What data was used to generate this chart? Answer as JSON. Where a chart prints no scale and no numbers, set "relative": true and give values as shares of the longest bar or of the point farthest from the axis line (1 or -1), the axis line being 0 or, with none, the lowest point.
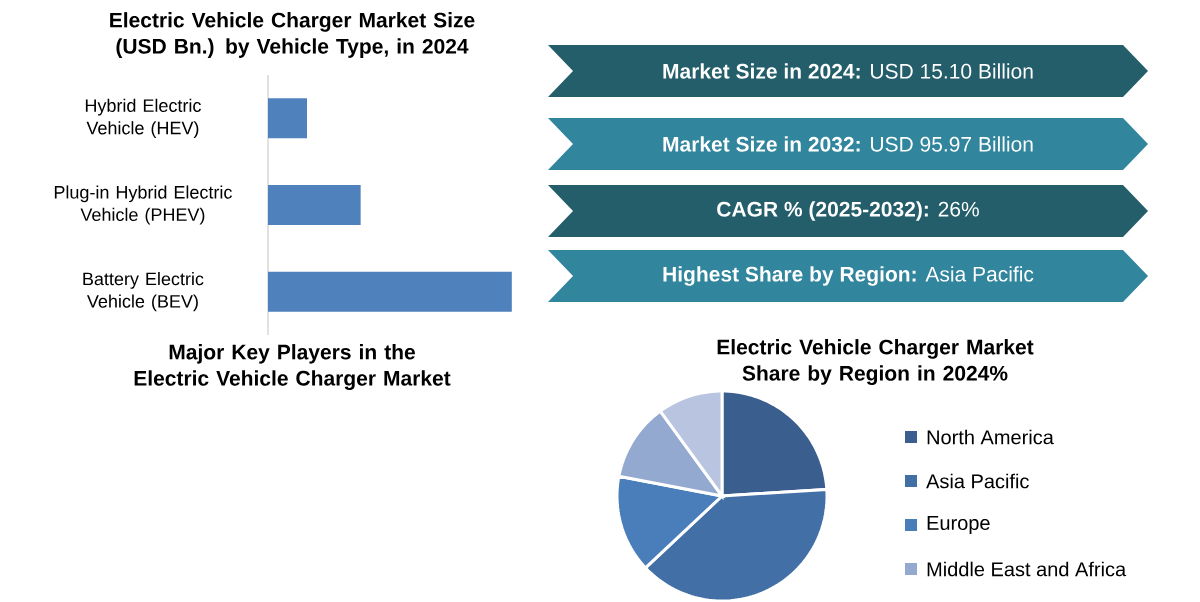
{
  "chart_data": [
    {
      "type": "bar",
      "orientation": "horizontal",
      "relative": true,
      "title": "Electric Vehicle Charger Market Size (USD Bn.) by Vehicle Type, in 2024",
      "categories": [
        "Hybrid Electric Vehicle (HEV)",
        "Plug-in Hybrid Electric Vehicle (PHEV)",
        "Battery Electric Vehicle (BEV)"
      ],
      "values": [
        0.16,
        0.38,
        1
      ],
      "color": "#4f81bd"
    },
    {
      "type": "other",
      "annotations": [
        "**Market Size in 2024:** USD 15.10 Billion",
        "**Market Size in 2032:** USD 95.97 Billion",
        "**CAGR % (2025-2032):** 26%",
        "**Highest Share by Region:** Asia Pacific"
      ],
      "colors": [
        "#255e6b",
        "#31859c",
        "#255e6b",
        "#31859c"
      ]
    },
    {
      "type": "other",
      "title": "Major Key Players in the Electric Vehicle Charger Market"
    },
    {
      "type": "pie",
      "title": "Electric Vehicle Charger Market Share by Region in 2024%",
      "categories": [
        "North America",
        "Asia Pacific",
        "Europe",
        "Middle East and Africa",
        null
      ],
      "values": [
        24,
        39,
        15,
        12,
        10
      ],
      "colors": [
        "#3a5f8f",
        "#416fa6",
        "#4a7ebb",
        "#94a9cf",
        "#b9c5e0"
      ],
      "legend": "right"
    }
  ]
}
